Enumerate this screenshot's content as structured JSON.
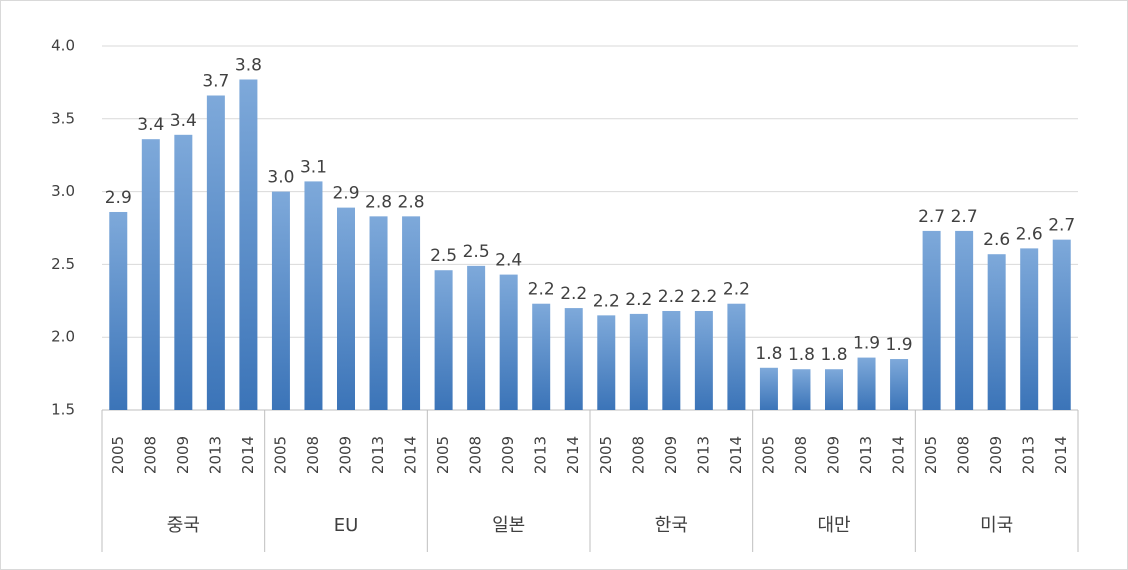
{
  "chart_data": {
    "type": "bar",
    "groups": [
      "중국",
      "EU",
      "일본",
      "한국",
      "대만",
      "미국"
    ],
    "categories": [
      "2005",
      "2008",
      "2009",
      "2013",
      "2014",
      "2005",
      "2008",
      "2009",
      "2013",
      "2014",
      "2005",
      "2008",
      "2009",
      "2013",
      "2014",
      "2005",
      "2008",
      "2009",
      "2013",
      "2014",
      "2005",
      "2008",
      "2009",
      "2013",
      "2014",
      "2005",
      "2008",
      "2009",
      "2013",
      "2014"
    ],
    "values": [
      2.86,
      3.36,
      3.39,
      3.66,
      3.77,
      3.0,
      3.07,
      2.89,
      2.83,
      2.83,
      2.46,
      2.49,
      2.43,
      2.23,
      2.2,
      2.15,
      2.16,
      2.18,
      2.18,
      2.23,
      1.79,
      1.78,
      1.78,
      1.86,
      1.85,
      2.73,
      2.73,
      2.57,
      2.61,
      2.67
    ],
    "value_labels": [
      "2.9",
      "3.4",
      "3.4",
      "3.7",
      "3.8",
      "3.0",
      "3.1",
      "2.9",
      "2.8",
      "2.8",
      "2.5",
      "2.5",
      "2.4",
      "2.2",
      "2.2",
      "2.2",
      "2.2",
      "2.2",
      "2.2",
      "2.2",
      "1.8",
      "1.8",
      "1.8",
      "1.9",
      "1.9",
      "2.7",
      "2.7",
      "2.6",
      "2.6",
      "2.7"
    ],
    "color": "#4a83c3",
    "ylim": [
      1.5,
      4.0
    ],
    "yticks": [
      {
        "value": 1.5,
        "label": "1.5"
      },
      {
        "value": 2,
        "label": "2.0"
      },
      {
        "value": 2.5,
        "label": "2.5"
      },
      {
        "value": 3,
        "label": "3.0"
      },
      {
        "value": 3.5,
        "label": "3.5"
      },
      {
        "value": 4,
        "label": "4.0"
      }
    ],
    "grid": true
  }
}
